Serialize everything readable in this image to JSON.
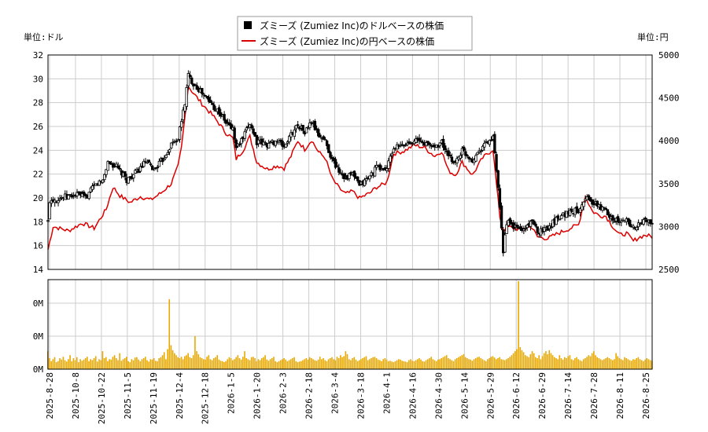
{
  "chart_data": {
    "type": "line",
    "left_unit_label": "単位:ドル",
    "right_unit_label": "単位:円",
    "legend": [
      {
        "name": "ズミーズ (Zumiez Inc)のドルベースの株価",
        "color": "#000000",
        "marker": "■"
      },
      {
        "name": "ズミーズ (Zumiez Inc)の円ベースの株価",
        "color": "#dd0000"
      }
    ],
    "price_axis_left": {
      "min": 14,
      "max": 32,
      "ticks": [
        "14",
        "16",
        "18",
        "20",
        "22",
        "24",
        "26",
        "28",
        "30",
        "32"
      ]
    },
    "price_axis_right": {
      "min": 2500,
      "max": 5000,
      "ticks": [
        "2500",
        "3000",
        "3500",
        "4000",
        "4500",
        "5000"
      ]
    },
    "volume_axis": {
      "ticks": [
        "0M",
        "0M",
        "0M"
      ]
    },
    "x_ticks": [
      "2025-8-28",
      "2025-10-8",
      "2025-10-22",
      "2025-11-5",
      "2025-11-19",
      "2025-12-4",
      "2025-12-18",
      "2026-1-5",
      "2026-1-20",
      "2026-2-3",
      "2026-2-18",
      "2026-3-4",
      "2026-3-18",
      "2026-4-1",
      "2026-4-16",
      "2026-4-30",
      "2026-5-14",
      "2026-5-29",
      "2026-6-12",
      "2026-6-29",
      "2026-7-14",
      "2026-7-28",
      "2026-8-11",
      "2026-8-25"
    ],
    "usd_close_keyframes": [
      [
        0,
        18.0
      ],
      [
        1,
        19.8
      ],
      [
        10,
        20.1
      ],
      [
        18,
        20.3
      ],
      [
        22,
        20.0
      ],
      [
        27,
        21.0
      ],
      [
        32,
        21.5
      ],
      [
        35,
        23.0
      ],
      [
        40,
        22.6
      ],
      [
        46,
        21.5
      ],
      [
        52,
        22.2
      ],
      [
        57,
        23.0
      ],
      [
        62,
        22.4
      ],
      [
        67,
        23.2
      ],
      [
        72,
        24.5
      ],
      [
        76,
        25.0
      ],
      [
        78,
        26.5
      ],
      [
        80,
        28.0
      ],
      [
        82,
        30.3
      ],
      [
        84,
        29.8
      ],
      [
        90,
        28.8
      ],
      [
        96,
        27.8
      ],
      [
        100,
        27.2
      ],
      [
        104,
        26.3
      ],
      [
        108,
        25.8
      ],
      [
        110,
        24.2
      ],
      [
        114,
        25.0
      ],
      [
        118,
        26.3
      ],
      [
        122,
        24.7
      ],
      [
        128,
        24.5
      ],
      [
        134,
        24.8
      ],
      [
        138,
        24.3
      ],
      [
        142,
        25.3
      ],
      [
        146,
        26.2
      ],
      [
        150,
        25.5
      ],
      [
        154,
        26.4
      ],
      [
        158,
        25.3
      ],
      [
        162,
        24.8
      ],
      [
        166,
        23.2
      ],
      [
        170,
        22.3
      ],
      [
        174,
        21.7
      ],
      [
        178,
        22.0
      ],
      [
        182,
        21.0
      ],
      [
        188,
        21.8
      ],
      [
        192,
        22.6
      ],
      [
        196,
        22.4
      ],
      [
        198,
        22.5
      ],
      [
        202,
        24.2
      ],
      [
        208,
        24.4
      ],
      [
        214,
        24.9
      ],
      [
        220,
        24.6
      ],
      [
        226,
        24.3
      ],
      [
        230,
        24.7
      ],
      [
        234,
        23.4
      ],
      [
        238,
        23.0
      ],
      [
        242,
        24.0
      ],
      [
        248,
        23.2
      ],
      [
        254,
        24.4
      ],
      [
        260,
        25.0
      ],
      [
        262,
        22.3
      ],
      [
        264,
        19.0
      ],
      [
        266,
        15.6
      ],
      [
        268,
        18.0
      ],
      [
        272,
        17.6
      ],
      [
        278,
        17.3
      ],
      [
        282,
        18.1
      ],
      [
        286,
        17.2
      ],
      [
        292,
        17.5
      ],
      [
        298,
        18.4
      ],
      [
        304,
        18.8
      ],
      [
        310,
        19.0
      ],
      [
        314,
        20.1
      ],
      [
        318,
        19.6
      ],
      [
        322,
        19.3
      ],
      [
        326,
        18.9
      ],
      [
        330,
        18.3
      ],
      [
        334,
        17.9
      ],
      [
        338,
        18.2
      ],
      [
        342,
        17.5
      ],
      [
        345,
        17.7
      ],
      [
        349,
        18.2
      ],
      [
        353,
        17.8
      ]
    ],
    "jpy_close_keyframes": [
      [
        0,
        2730
      ],
      [
        3,
        3000
      ],
      [
        12,
        2950
      ],
      [
        20,
        3040
      ],
      [
        27,
        2980
      ],
      [
        34,
        3200
      ],
      [
        38,
        3460
      ],
      [
        42,
        3360
      ],
      [
        48,
        3280
      ],
      [
        54,
        3350
      ],
      [
        60,
        3310
      ],
      [
        66,
        3390
      ],
      [
        72,
        3500
      ],
      [
        76,
        3700
      ],
      [
        78,
        3920
      ],
      [
        80,
        4280
      ],
      [
        82,
        4640
      ],
      [
        84,
        4580
      ],
      [
        90,
        4430
      ],
      [
        96,
        4300
      ],
      [
        100,
        4200
      ],
      [
        104,
        4090
      ],
      [
        108,
        4030
      ],
      [
        110,
        3790
      ],
      [
        114,
        3890
      ],
      [
        118,
        4050
      ],
      [
        122,
        3750
      ],
      [
        128,
        3670
      ],
      [
        134,
        3710
      ],
      [
        138,
        3680
      ],
      [
        142,
        3820
      ],
      [
        146,
        4000
      ],
      [
        150,
        3900
      ],
      [
        154,
        4010
      ],
      [
        158,
        3870
      ],
      [
        162,
        3800
      ],
      [
        166,
        3560
      ],
      [
        170,
        3450
      ],
      [
        174,
        3380
      ],
      [
        178,
        3410
      ],
      [
        182,
        3330
      ],
      [
        188,
        3390
      ],
      [
        192,
        3460
      ],
      [
        196,
        3490
      ],
      [
        198,
        3520
      ],
      [
        202,
        3850
      ],
      [
        208,
        3880
      ],
      [
        214,
        3950
      ],
      [
        220,
        3920
      ],
      [
        226,
        3820
      ],
      [
        230,
        3880
      ],
      [
        234,
        3650
      ],
      [
        238,
        3600
      ],
      [
        242,
        3750
      ],
      [
        248,
        3600
      ],
      [
        254,
        3800
      ],
      [
        260,
        3900
      ],
      [
        262,
        3500
      ],
      [
        264,
        3120
      ],
      [
        266,
        2940
      ],
      [
        268,
        3000
      ],
      [
        272,
        2980
      ],
      [
        278,
        2960
      ],
      [
        282,
        3010
      ],
      [
        286,
        2880
      ],
      [
        292,
        2860
      ],
      [
        298,
        2920
      ],
      [
        304,
        2970
      ],
      [
        310,
        3020
      ],
      [
        314,
        3350
      ],
      [
        318,
        3180
      ],
      [
        322,
        3130
      ],
      [
        326,
        3120
      ],
      [
        330,
        3000
      ],
      [
        334,
        2900
      ],
      [
        338,
        2920
      ],
      [
        342,
        2830
      ],
      [
        345,
        2870
      ],
      [
        349,
        2900
      ],
      [
        353,
        2880
      ]
    ],
    "volume_bars": [
      0.9,
      0.55,
      0.4,
      0.5,
      0.6,
      0.35,
      0.4,
      0.55,
      0.48,
      0.62,
      0.45,
      0.38,
      0.5,
      0.7,
      0.4,
      0.55,
      0.45,
      0.6,
      0.35,
      0.5,
      0.42,
      0.48,
      0.55,
      0.62,
      0.4,
      0.5,
      0.45,
      0.55,
      0.65,
      0.38,
      0.5,
      0.45,
      0.9,
      0.55,
      0.6,
      0.4,
      0.5,
      0.48,
      0.62,
      0.7,
      0.55,
      0.45,
      0.8,
      0.42,
      0.5,
      0.55,
      0.62,
      0.4,
      0.35,
      0.5,
      0.45,
      0.58,
      0.6,
      0.48,
      0.4,
      0.5,
      0.55,
      0.62,
      0.45,
      0.38,
      0.5,
      0.48,
      0.55,
      0.42,
      0.4,
      0.55,
      0.6,
      0.7,
      0.85,
      0.5,
      1.0,
      3.5,
      1.2,
      0.95,
      0.8,
      0.7,
      0.6,
      0.55,
      0.62,
      0.5,
      0.65,
      0.7,
      0.8,
      0.6,
      0.55,
      0.7,
      1.65,
      0.9,
      0.75,
      0.6,
      0.55,
      0.5,
      0.48,
      0.62,
      0.7,
      0.5,
      0.45,
      0.55,
      0.6,
      0.7,
      0.48,
      0.42,
      0.4,
      0.35,
      0.4,
      0.5,
      0.6,
      0.55,
      0.45,
      0.5,
      0.6,
      0.7,
      0.55,
      0.48,
      0.62,
      0.9,
      0.55,
      0.5,
      0.45,
      0.6,
      0.62,
      0.55,
      0.4,
      0.5,
      0.45,
      0.55,
      0.6,
      0.7,
      0.48,
      0.42,
      0.5,
      0.55,
      0.62,
      0.4,
      0.35,
      0.4,
      0.45,
      0.5,
      0.55,
      0.48,
      0.4,
      0.45,
      0.5,
      0.55,
      0.6,
      0.4,
      0.35,
      0.38,
      0.4,
      0.45,
      0.5,
      0.55,
      0.48,
      0.6,
      0.55,
      0.5,
      0.45,
      0.42,
      0.48,
      0.62,
      0.5,
      0.55,
      0.45,
      0.4,
      0.5,
      0.55,
      0.6,
      0.5,
      0.45,
      0.62,
      0.55,
      0.7,
      0.6,
      0.65,
      0.9,
      0.75,
      0.5,
      0.45,
      0.55,
      0.6,
      0.48,
      0.4,
      0.45,
      0.5,
      0.55,
      0.6,
      0.65,
      0.45,
      0.5,
      0.55,
      0.6,
      0.62,
      0.55,
      0.48,
      0.45,
      0.4,
      0.5,
      0.55,
      0.48,
      0.4,
      0.42,
      0.38,
      0.35,
      0.4,
      0.45,
      0.5,
      0.48,
      0.42,
      0.4,
      0.38,
      0.35,
      0.45,
      0.5,
      0.42,
      0.4,
      0.45,
      0.5,
      0.55,
      0.48,
      0.4,
      0.38,
      0.45,
      0.5,
      0.55,
      0.62,
      0.5,
      0.45,
      0.4,
      0.48,
      0.5,
      0.55,
      0.6,
      0.65,
      0.7,
      0.55,
      0.5,
      0.45,
      0.4,
      0.5,
      0.55,
      0.6,
      0.65,
      0.7,
      0.75,
      0.6,
      0.55,
      0.5,
      0.48,
      0.42,
      0.5,
      0.55,
      0.6,
      0.62,
      0.55,
      0.5,
      0.45,
      0.4,
      0.5,
      0.55,
      0.62,
      0.65,
      0.58,
      0.5,
      0.55,
      0.6,
      0.5,
      0.48,
      0.45,
      0.5,
      0.55,
      0.62,
      0.7,
      0.8,
      0.9,
      1.0,
      4.4,
      1.1,
      0.95,
      0.85,
      0.7,
      0.65,
      0.6,
      0.75,
      0.9,
      0.8,
      0.6,
      0.55,
      0.7,
      0.5,
      0.65,
      0.8,
      0.9,
      0.75,
      0.95,
      0.8,
      0.7,
      0.6,
      0.55,
      0.5,
      0.7,
      0.55,
      0.48,
      0.6,
      0.55,
      0.65,
      0.7,
      0.5,
      0.45,
      0.55,
      0.6,
      0.5,
      0.45,
      0.4,
      0.5,
      0.55,
      0.62,
      0.7,
      0.65,
      0.8,
      0.9,
      0.7,
      0.6,
      0.55,
      0.5,
      0.45,
      0.5,
      0.55,
      0.6,
      0.55,
      0.5,
      0.45,
      0.5,
      0.8,
      0.65,
      0.55,
      0.5,
      0.45,
      0.6,
      0.55,
      0.5,
      0.45,
      0.42,
      0.5,
      0.48,
      0.55,
      0.6,
      0.5,
      0.45,
      0.4,
      0.48,
      0.55,
      0.5,
      0.45,
      0.42,
      0.5,
      0.55,
      0.6
    ],
    "volume_scale_max": 4.4
  }
}
